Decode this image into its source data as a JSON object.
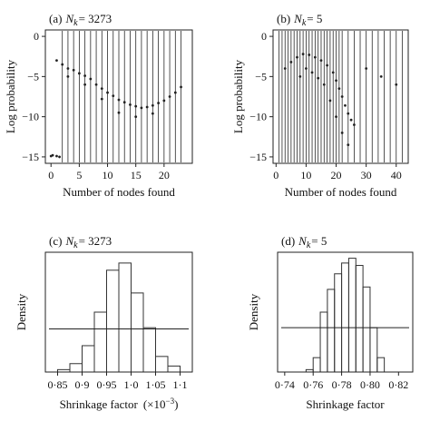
{
  "header_text": "",
  "caption_text": "",
  "chart_data": [
    {
      "id": "a",
      "type": "scatter",
      "panel_label": "(a)",
      "nk_label": "N",
      "nk_sub": "k",
      "nk_value": "= 3273",
      "xlabel": "Number of nodes found",
      "ylabel": "Log probability",
      "xlim": [
        -1,
        25
      ],
      "ylim": [
        -15.8,
        0.8
      ],
      "xticks": [
        0,
        5,
        10,
        15,
        20
      ],
      "yticks": [
        0,
        -5,
        -10,
        -15
      ],
      "vlines_x": [
        2,
        3,
        4,
        5,
        6,
        7,
        8,
        9,
        10,
        11,
        12,
        13,
        14,
        15,
        16,
        17,
        18,
        19,
        20,
        21,
        22,
        23
      ],
      "points": [
        [
          0,
          -14.9
        ],
        [
          0.3,
          -14.8
        ],
        [
          1,
          -14.9
        ],
        [
          1.5,
          -15.0
        ],
        [
          1,
          -3.0
        ],
        [
          2,
          -3.5
        ],
        [
          3,
          -4.0
        ],
        [
          4,
          -4.2
        ],
        [
          5,
          -4.6
        ],
        [
          6,
          -4.9
        ],
        [
          7,
          -5.3
        ],
        [
          8,
          -6.0
        ],
        [
          9,
          -6.5
        ],
        [
          10,
          -7.0
        ],
        [
          11,
          -7.4
        ],
        [
          12,
          -7.9
        ],
        [
          13,
          -8.2
        ],
        [
          14,
          -8.5
        ],
        [
          15,
          -8.7
        ],
        [
          16,
          -8.9
        ],
        [
          17,
          -8.8
        ],
        [
          18,
          -8.6
        ],
        [
          19,
          -8.3
        ],
        [
          20,
          -8.0
        ],
        [
          21,
          -7.5
        ],
        [
          22,
          -7.0
        ],
        [
          23,
          -6.3
        ],
        [
          3,
          -5.0
        ],
        [
          6,
          -6.0
        ],
        [
          9,
          -7.8
        ],
        [
          12,
          -9.5
        ],
        [
          15,
          -10.0
        ],
        [
          18,
          -9.6
        ]
      ]
    },
    {
      "id": "b",
      "type": "scatter",
      "panel_label": "(b)",
      "nk_label": "N",
      "nk_sub": "k",
      "nk_value": "= 5",
      "xlabel": "Number of nodes found",
      "ylabel": "Log probability",
      "xlim": [
        -1,
        44
      ],
      "ylim": [
        -15.8,
        0.8
      ],
      "xticks": [
        0,
        10,
        20,
        30,
        40
      ],
      "yticks": [
        0,
        -5,
        -10,
        -15
      ],
      "vlines_x": [
        1,
        2,
        3,
        4,
        5,
        6,
        7,
        8,
        9,
        10,
        11,
        12,
        13,
        14,
        15,
        16,
        17,
        18,
        19,
        20,
        21,
        22,
        24,
        26,
        28,
        30,
        32,
        34,
        36,
        38,
        40,
        42
      ],
      "points": [
        [
          3,
          -4.0
        ],
        [
          5,
          -3.2
        ],
        [
          7,
          -2.6
        ],
        [
          9,
          -2.2
        ],
        [
          11,
          -2.3
        ],
        [
          13,
          -2.6
        ],
        [
          15,
          -3.0
        ],
        [
          17,
          -3.6
        ],
        [
          19,
          -4.5
        ],
        [
          20,
          -5.5
        ],
        [
          21,
          -6.5
        ],
        [
          22,
          -7.5
        ],
        [
          23,
          -8.6
        ],
        [
          24,
          -9.6
        ],
        [
          25,
          -10.4
        ],
        [
          26,
          -11.0
        ],
        [
          8,
          -5.0
        ],
        [
          10,
          -4.0
        ],
        [
          12,
          -4.5
        ],
        [
          14,
          -5.2
        ],
        [
          16,
          -6.0
        ],
        [
          18,
          -8.0
        ],
        [
          20,
          -10.0
        ],
        [
          22,
          -12.0
        ],
        [
          24,
          -13.5
        ],
        [
          30,
          -4.0
        ],
        [
          35,
          -5.0
        ],
        [
          40,
          -6.0
        ]
      ]
    },
    {
      "id": "c",
      "type": "bar",
      "panel_label": "(c)",
      "nk_label": "N",
      "nk_sub": "k",
      "nk_value": "= 3273",
      "xlabel": "Shrinkage factor",
      "xlabel_suffix": "(×10",
      "xlabel_sup": "−3",
      "xlabel_end": ")",
      "ylabel": "Density",
      "xlim": [
        0.825,
        1.125
      ],
      "ylim": [
        0,
        1
      ],
      "xticks": [
        0.85,
        0.9,
        0.95,
        1.0,
        1.05,
        1.1
      ],
      "xtick_labels": [
        "0·85",
        "0·9",
        "0·95",
        "1·0",
        "1·05",
        "1·1"
      ],
      "bin_edges": [
        0.85,
        0.875,
        0.9,
        0.925,
        0.95,
        0.975,
        1.0,
        1.025,
        1.05,
        1.075,
        1.1
      ],
      "values": [
        0.02,
        0.07,
        0.22,
        0.5,
        0.85,
        0.91,
        0.66,
        0.37,
        0.13,
        0.05
      ],
      "ref_line": 0.36
    },
    {
      "id": "d",
      "type": "bar",
      "panel_label": "(d)",
      "nk_label": "N",
      "nk_sub": "k",
      "nk_value": "= 5",
      "xlabel": "Shrinkage factor",
      "ylabel": "Density",
      "xlim": [
        0.735,
        0.83
      ],
      "ylim": [
        0,
        1
      ],
      "xticks": [
        0.74,
        0.76,
        0.78,
        0.8,
        0.82
      ],
      "xtick_labels": [
        "0·74",
        "0·76",
        "0·78",
        "0·80",
        "0·82"
      ],
      "bin_edges": [
        0.755,
        0.76,
        0.765,
        0.77,
        0.775,
        0.78,
        0.785,
        0.79,
        0.795,
        0.8,
        0.805,
        0.81
      ],
      "values": [
        0.02,
        0.12,
        0.5,
        0.69,
        0.82,
        0.91,
        0.95,
        0.89,
        0.71,
        0.37,
        0.12
      ],
      "ref_line": 0.37
    }
  ]
}
